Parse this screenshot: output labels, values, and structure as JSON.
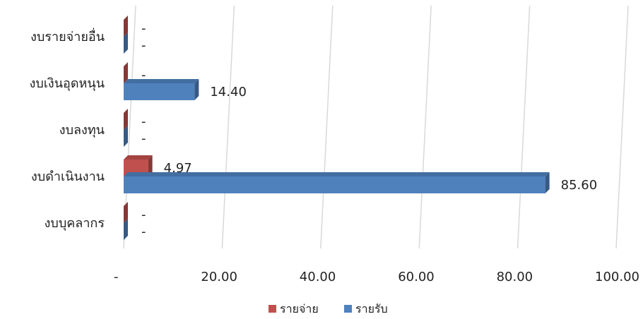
{
  "chart_data": {
    "type": "bar",
    "orientation": "horizontal",
    "categories": [
      "งบรายจ่ายอื่น",
      "งบเงินอุดหนุน",
      "งบลงทุน",
      "งบดำเนินงาน",
      "งบบุคลากร"
    ],
    "series": [
      {
        "name": "รายจ่าย",
        "values": [
          0,
          0,
          0,
          4.97,
          0
        ],
        "labels": [
          "-",
          "-",
          "-",
          "4.97",
          "-"
        ],
        "color": "#c0504d"
      },
      {
        "name": "รายรับ",
        "values": [
          0,
          14.4,
          0,
          85.6,
          0
        ],
        "labels": [
          "-",
          "14.40",
          "-",
          "85.60",
          "-"
        ],
        "color": "#4f81bd"
      }
    ],
    "xlim": [
      0,
      100
    ],
    "xticks": [
      "-",
      "20.00",
      "40.00",
      "60.00",
      "80.00",
      "100.00"
    ],
    "grid": true,
    "legend_position": "bottom"
  }
}
